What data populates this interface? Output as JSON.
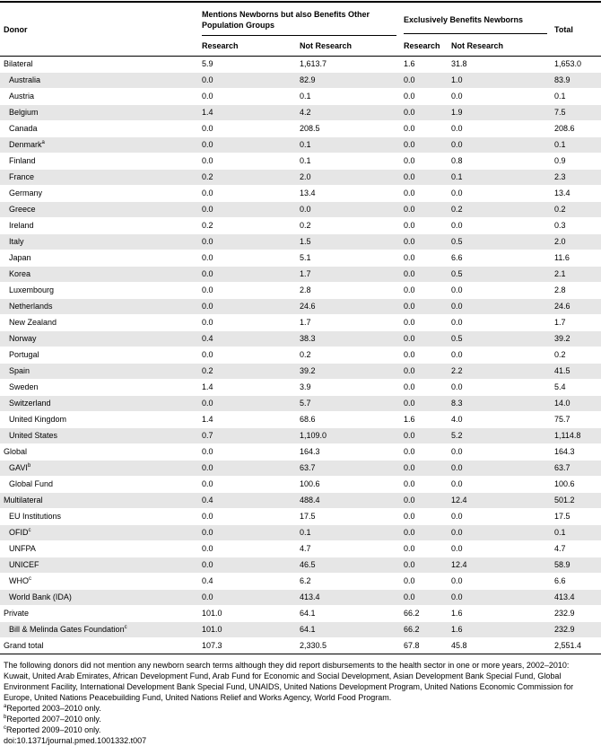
{
  "headers": {
    "donor": "Donor",
    "group1": "Mentions Newborns but also Benefits Other Population Groups",
    "group2": "Exclusively Benefits Newborns",
    "total": "Total",
    "research": "Research",
    "not_research": "Not Research"
  },
  "rows": [
    {
      "donor": "Bilateral",
      "sup": "",
      "indent": false,
      "shade": false,
      "r1": "5.9",
      "nr1": "1,613.7",
      "r2": "1.6",
      "nr2": "31.8",
      "total": "1,653.0"
    },
    {
      "donor": "Australia",
      "sup": "",
      "indent": true,
      "shade": true,
      "r1": "0.0",
      "nr1": "82.9",
      "r2": "0.0",
      "nr2": "1.0",
      "total": "83.9"
    },
    {
      "donor": "Austria",
      "sup": "",
      "indent": true,
      "shade": false,
      "r1": "0.0",
      "nr1": "0.1",
      "r2": "0.0",
      "nr2": "0.0",
      "total": "0.1"
    },
    {
      "donor": "Belgium",
      "sup": "",
      "indent": true,
      "shade": true,
      "r1": "1.4",
      "nr1": "4.2",
      "r2": "0.0",
      "nr2": "1.9",
      "total": "7.5"
    },
    {
      "donor": "Canada",
      "sup": "",
      "indent": true,
      "shade": false,
      "r1": "0.0",
      "nr1": "208.5",
      "r2": "0.0",
      "nr2": "0.0",
      "total": "208.6"
    },
    {
      "donor": "Denmark",
      "sup": "a",
      "indent": true,
      "shade": true,
      "r1": "0.0",
      "nr1": "0.1",
      "r2": "0.0",
      "nr2": "0.0",
      "total": "0.1"
    },
    {
      "donor": "Finland",
      "sup": "",
      "indent": true,
      "shade": false,
      "r1": "0.0",
      "nr1": "0.1",
      "r2": "0.0",
      "nr2": "0.8",
      "total": "0.9"
    },
    {
      "donor": "France",
      "sup": "",
      "indent": true,
      "shade": true,
      "r1": "0.2",
      "nr1": "2.0",
      "r2": "0.0",
      "nr2": "0.1",
      "total": "2.3"
    },
    {
      "donor": "Germany",
      "sup": "",
      "indent": true,
      "shade": false,
      "r1": "0.0",
      "nr1": "13.4",
      "r2": "0.0",
      "nr2": "0.0",
      "total": "13.4"
    },
    {
      "donor": "Greece",
      "sup": "",
      "indent": true,
      "shade": true,
      "r1": "0.0",
      "nr1": "0.0",
      "r2": "0.0",
      "nr2": "0.2",
      "total": "0.2"
    },
    {
      "donor": "Ireland",
      "sup": "",
      "indent": true,
      "shade": false,
      "r1": "0.2",
      "nr1": "0.2",
      "r2": "0.0",
      "nr2": "0.0",
      "total": "0.3"
    },
    {
      "donor": "Italy",
      "sup": "",
      "indent": true,
      "shade": true,
      "r1": "0.0",
      "nr1": "1.5",
      "r2": "0.0",
      "nr2": "0.5",
      "total": "2.0"
    },
    {
      "donor": "Japan",
      "sup": "",
      "indent": true,
      "shade": false,
      "r1": "0.0",
      "nr1": "5.1",
      "r2": "0.0",
      "nr2": "6.6",
      "total": "11.6"
    },
    {
      "donor": "Korea",
      "sup": "",
      "indent": true,
      "shade": true,
      "r1": "0.0",
      "nr1": "1.7",
      "r2": "0.0",
      "nr2": "0.5",
      "total": "2.1"
    },
    {
      "donor": "Luxembourg",
      "sup": "",
      "indent": true,
      "shade": false,
      "r1": "0.0",
      "nr1": "2.8",
      "r2": "0.0",
      "nr2": "0.0",
      "total": "2.8"
    },
    {
      "donor": "Netherlands",
      "sup": "",
      "indent": true,
      "shade": true,
      "r1": "0.0",
      "nr1": "24.6",
      "r2": "0.0",
      "nr2": "0.0",
      "total": "24.6"
    },
    {
      "donor": "New Zealand",
      "sup": "",
      "indent": true,
      "shade": false,
      "r1": "0.0",
      "nr1": "1.7",
      "r2": "0.0",
      "nr2": "0.0",
      "total": "1.7"
    },
    {
      "donor": "Norway",
      "sup": "",
      "indent": true,
      "shade": true,
      "r1": "0.4",
      "nr1": "38.3",
      "r2": "0.0",
      "nr2": "0.5",
      "total": "39.2"
    },
    {
      "donor": "Portugal",
      "sup": "",
      "indent": true,
      "shade": false,
      "r1": "0.0",
      "nr1": "0.2",
      "r2": "0.0",
      "nr2": "0.0",
      "total": "0.2"
    },
    {
      "donor": "Spain",
      "sup": "",
      "indent": true,
      "shade": true,
      "r1": "0.2",
      "nr1": "39.2",
      "r2": "0.0",
      "nr2": "2.2",
      "total": "41.5"
    },
    {
      "donor": "Sweden",
      "sup": "",
      "indent": true,
      "shade": false,
      "r1": "1.4",
      "nr1": "3.9",
      "r2": "0.0",
      "nr2": "0.0",
      "total": "5.4"
    },
    {
      "donor": "Switzerland",
      "sup": "",
      "indent": true,
      "shade": true,
      "r1": "0.0",
      "nr1": "5.7",
      "r2": "0.0",
      "nr2": "8.3",
      "total": "14.0"
    },
    {
      "donor": "United Kingdom",
      "sup": "",
      "indent": true,
      "shade": false,
      "r1": "1.4",
      "nr1": "68.6",
      "r2": "1.6",
      "nr2": "4.0",
      "total": "75.7"
    },
    {
      "donor": "United States",
      "sup": "",
      "indent": true,
      "shade": true,
      "r1": "0.7",
      "nr1": "1,109.0",
      "r2": "0.0",
      "nr2": "5.2",
      "total": "1,114.8"
    },
    {
      "donor": "Global",
      "sup": "",
      "indent": false,
      "shade": false,
      "r1": "0.0",
      "nr1": "164.3",
      "r2": "0.0",
      "nr2": "0.0",
      "total": "164.3"
    },
    {
      "donor": "GAVI",
      "sup": "b",
      "indent": true,
      "shade": true,
      "r1": "0.0",
      "nr1": "63.7",
      "r2": "0.0",
      "nr2": "0.0",
      "total": "63.7"
    },
    {
      "donor": "Global Fund",
      "sup": "",
      "indent": true,
      "shade": false,
      "r1": "0.0",
      "nr1": "100.6",
      "r2": "0.0",
      "nr2": "0.0",
      "total": "100.6"
    },
    {
      "donor": "Multilateral",
      "sup": "",
      "indent": false,
      "shade": true,
      "r1": "0.4",
      "nr1": "488.4",
      "r2": "0.0",
      "nr2": "12.4",
      "total": "501.2"
    },
    {
      "donor": "EU Institutions",
      "sup": "",
      "indent": true,
      "shade": false,
      "r1": "0.0",
      "nr1": "17.5",
      "r2": "0.0",
      "nr2": "0.0",
      "total": "17.5"
    },
    {
      "donor": "OFID",
      "sup": "c",
      "indent": true,
      "shade": true,
      "r1": "0.0",
      "nr1": "0.1",
      "r2": "0.0",
      "nr2": "0.0",
      "total": "0.1"
    },
    {
      "donor": "UNFPA",
      "sup": "",
      "indent": true,
      "shade": false,
      "r1": "0.0",
      "nr1": "4.7",
      "r2": "0.0",
      "nr2": "0.0",
      "total": "4.7"
    },
    {
      "donor": "UNICEF",
      "sup": "",
      "indent": true,
      "shade": true,
      "r1": "0.0",
      "nr1": "46.5",
      "r2": "0.0",
      "nr2": "12.4",
      "total": "58.9"
    },
    {
      "donor": "WHO",
      "sup": "c",
      "indent": true,
      "shade": false,
      "r1": "0.4",
      "nr1": "6.2",
      "r2": "0.0",
      "nr2": "0.0",
      "total": "6.6"
    },
    {
      "donor": "World Bank (IDA)",
      "sup": "",
      "indent": true,
      "shade": true,
      "r1": "0.0",
      "nr1": "413.4",
      "r2": "0.0",
      "nr2": "0.0",
      "total": "413.4"
    },
    {
      "donor": "Private",
      "sup": "",
      "indent": false,
      "shade": false,
      "r1": "101.0",
      "nr1": "64.1",
      "r2": "66.2",
      "nr2": "1.6",
      "total": "232.9"
    },
    {
      "donor": "Bill & Melinda Gates Foundation",
      "sup": "c",
      "indent": true,
      "shade": true,
      "r1": "101.0",
      "nr1": "64.1",
      "r2": "66.2",
      "nr2": "1.6",
      "total": "232.9"
    },
    {
      "donor": "Grand total",
      "sup": "",
      "indent": false,
      "shade": false,
      "r1": "107.3",
      "nr1": "2,330.5",
      "r2": "67.8",
      "nr2": "45.8",
      "total": "2,551.4"
    }
  ],
  "notes": {
    "main": "The following donors did not mention any newborn search terms although they did report disbursements to the health sector in one or more years, 2002–2010: Kuwait, United Arab Emirates, African Development Fund, Arab Fund for Economic and Social Development, Asian Development Bank Special Fund, Global Environment Facility, International Development Bank Special Fund, UNAIDS, United Nations Development Program, United Nations Economic Commission for Europe, United Nations Peacebuilding Fund, United Nations Relief and Works Agency, World Food Program.",
    "a_mark": "a",
    "a_text": "Reported 2003–2010 only.",
    "b_mark": "b",
    "b_text": "Reported 2007–2010 only.",
    "c_mark": "c",
    "c_text": "Reported 2009–2010 only.",
    "doi": "doi:10.1371/journal.pmed.1001332.t007"
  }
}
